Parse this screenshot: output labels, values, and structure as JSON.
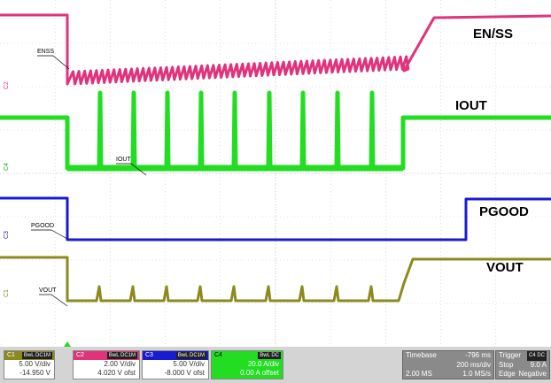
{
  "labels": {
    "ch2": "EN/SS",
    "ch4": "IOUT",
    "ch3": "PGOOD",
    "ch1": "VOUT",
    "ch2_small": "ENSS",
    "ch4_small": "IOUT",
    "ch3_small": "PGOOD",
    "ch1_small": "VOUT"
  },
  "channel_markers": {
    "c1": "C1",
    "c2": "C2",
    "c3": "C3",
    "c4": "C4"
  },
  "colors": {
    "ch1": "#8b8a1e",
    "ch2": "#e0337b",
    "ch3": "#1a1ad0",
    "ch4": "#22dd22",
    "grid": "#c8c8c8"
  },
  "channels": [
    {
      "id": "C1",
      "tag": "BwL DC1M",
      "scale": "5.00 V/div",
      "offset": "-14.950 V",
      "color": "#8b8a1e",
      "text_color": "#fff"
    },
    {
      "id": "C2",
      "tag": "BwL DC1M",
      "scale": "2.00 V/div",
      "offset": "4.020 V ofst",
      "color": "#e0337b",
      "text_color": "#fff"
    },
    {
      "id": "C3",
      "tag": "BwL DC1M",
      "scale": "5.00 V/div",
      "offset": "-8.000 V ofst",
      "color": "#1a1ad0",
      "text_color": "#fff"
    },
    {
      "id": "C4",
      "tag": "BwL DC",
      "scale": "20.0 A/div",
      "offset": "0.00 A offset",
      "color": "#22dd22",
      "text_color": "#000"
    }
  ],
  "timebase": {
    "label": "Timebase",
    "delay": "-796 ms",
    "per_div": "200 ms/div",
    "samples": "2.00 MS",
    "rate": "1.0 MS/s"
  },
  "trigger": {
    "label": "Trigger",
    "tag": "C4 DC",
    "mode": "Stop",
    "level": "9.0 A",
    "type": "Edge",
    "slope": "Negative"
  }
}
